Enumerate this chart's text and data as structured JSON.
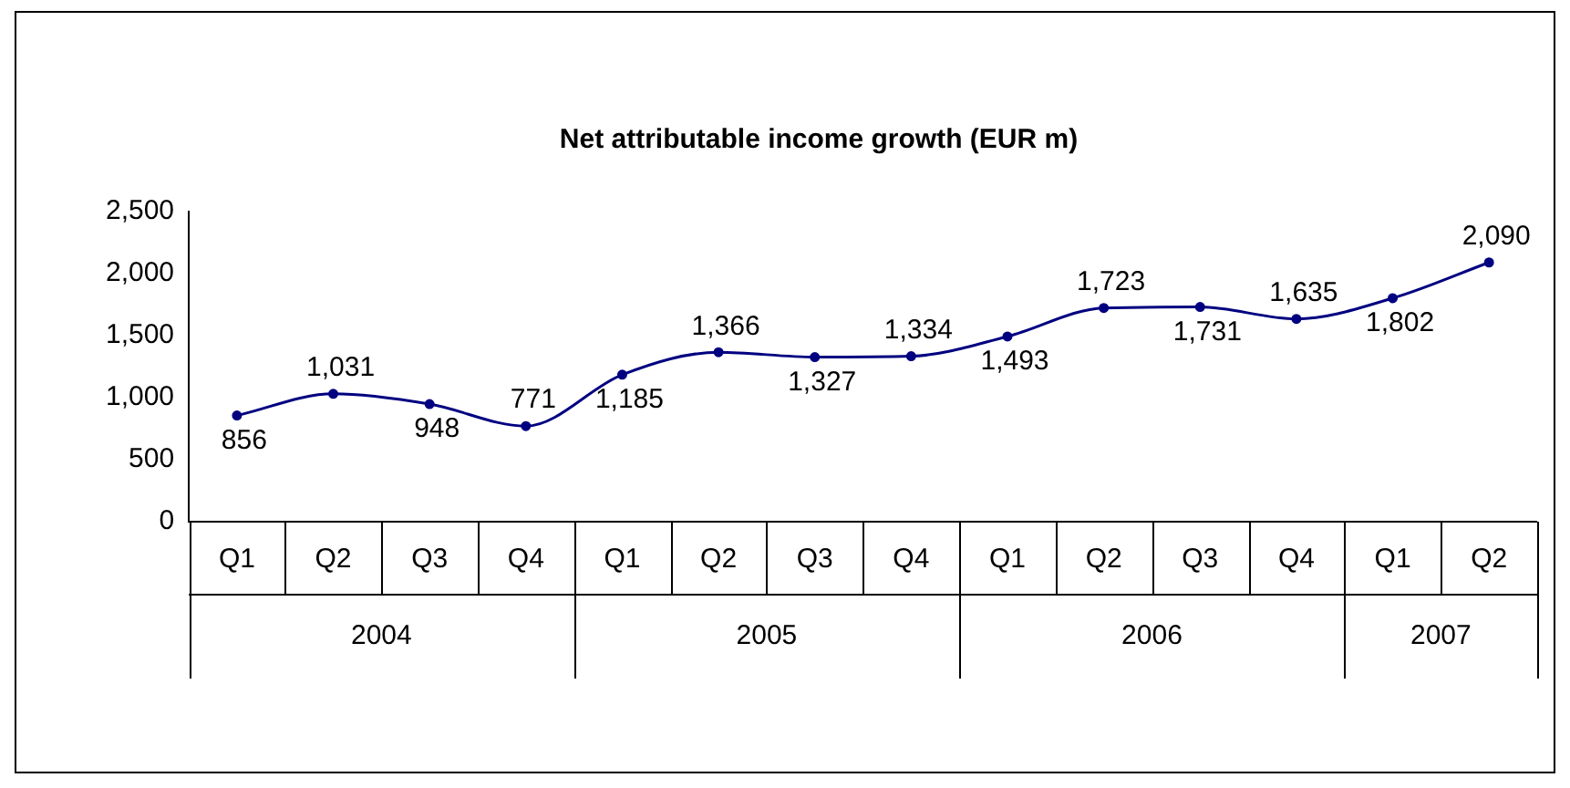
{
  "chart_data": {
    "type": "line",
    "title": "Net attributable income growth (EUR m)",
    "categories": [
      "Q1",
      "Q2",
      "Q3",
      "Q4",
      "Q1",
      "Q2",
      "Q3",
      "Q4",
      "Q1",
      "Q2",
      "Q3",
      "Q4",
      "Q1",
      "Q2"
    ],
    "series": [
      {
        "color": "#000080",
        "values": [
          856,
          1031,
          948,
          771,
          1185,
          1366,
          1327,
          1334,
          1493,
          1723,
          1731,
          1635,
          1802,
          2090
        ],
        "value_labels": [
          "856",
          "1,031",
          "948",
          "771",
          "1,185",
          "1,366",
          "1,327",
          "1,334",
          "1,493",
          "1,723",
          "1,731",
          "1,635",
          "1,802",
          "2,090"
        ]
      }
    ],
    "ylim": [
      0,
      2500
    ],
    "yticks": [
      0,
      {
        "value": 500,
        "label": "500"
      },
      {
        "value": 1000,
        "label": "1,000"
      },
      {
        "value": 1500,
        "label": "1,500"
      },
      {
        "value": 2000,
        "label": "2,000"
      },
      {
        "value": 2500,
        "label": "2,500"
      }
    ],
    "annotations": [
      "2004",
      "2005",
      "2006",
      "2007"
    ],
    "marker": "circle",
    "grid": false,
    "legend": false
  }
}
